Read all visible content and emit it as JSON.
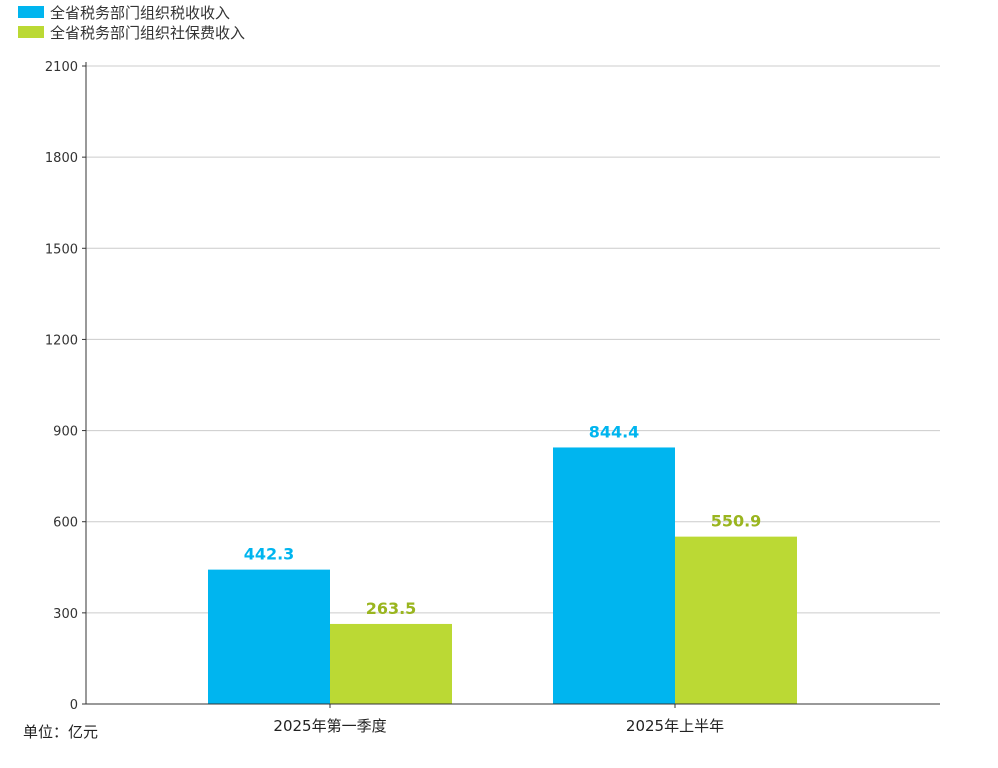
{
  "chart_data": {
    "type": "bar",
    "categories": [
      "2025年第一季度",
      "2025年上半年"
    ],
    "series": [
      {
        "name": "全省税务部门组织税收收入",
        "color": "#00b5ef",
        "values": [
          442.3,
          844.4
        ],
        "labels": [
          "442.3",
          "844.4"
        ]
      },
      {
        "name": "全省税务部门组织社保费收入",
        "color": "#bbd934",
        "values": [
          263.5,
          550.9
        ],
        "labels": [
          "263.5",
          "550.9"
        ]
      }
    ],
    "ylim": [
      0,
      2100
    ],
    "yticks": [
      0,
      300,
      600,
      900,
      1200,
      1500,
      1800,
      2100
    ],
    "unit_label": "单位：亿元",
    "grid": true,
    "legend_position": "top-left",
    "label_color_series2": "#9ab51f"
  }
}
